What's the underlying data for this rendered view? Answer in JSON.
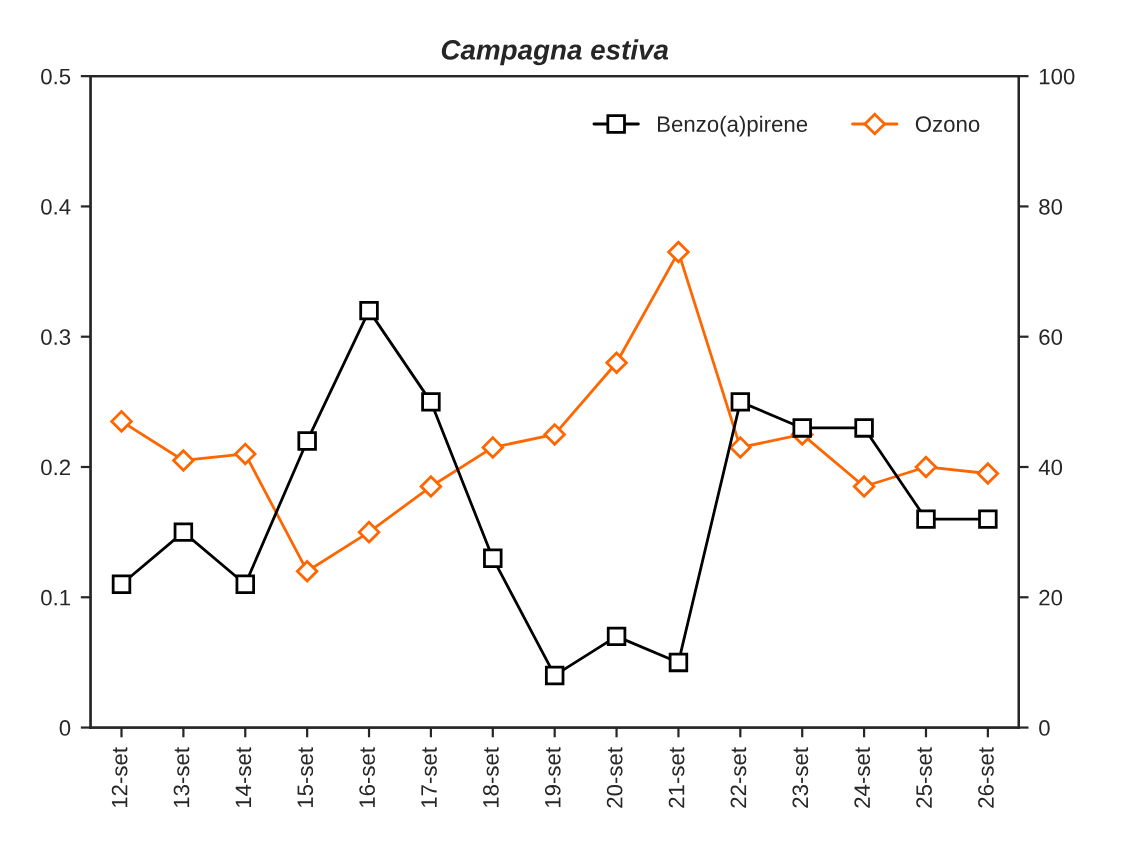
{
  "chart_data": {
    "type": "line",
    "title": "Campagna estiva",
    "categories": [
      "12-set",
      "13-set",
      "14-set",
      "15-set",
      "16-set",
      "17-set",
      "18-set",
      "19-set",
      "20-set",
      "21-set",
      "22-set",
      "23-set",
      "24-set",
      "25-set",
      "26-set"
    ],
    "series": [
      {
        "name": "Benzo(a)pirene",
        "color": "#000000",
        "marker": "square",
        "values": [
          0.11,
          0.15,
          0.11,
          0.22,
          0.32,
          0.25,
          0.13,
          0.04,
          0.07,
          0.05,
          0.25,
          0.23,
          0.23,
          0.16,
          0.16
        ]
      },
      {
        "name": "Ozono",
        "color": "#ff6600",
        "marker": "diamond",
        "axis": "y2",
        "values": [
          47,
          41,
          42,
          24,
          30,
          37,
          43,
          45,
          56,
          73,
          43,
          45,
          37,
          40,
          39
        ]
      }
    ],
    "ylim": [
      0,
      0.5
    ],
    "yticks": [
      0,
      0.1,
      0.2,
      0.3,
      0.4,
      0.5
    ],
    "y2lim": [
      0,
      100
    ],
    "y2ticks": [
      0,
      20,
      40,
      60,
      80,
      100
    ],
    "legend": "top right",
    "grid": false
  }
}
